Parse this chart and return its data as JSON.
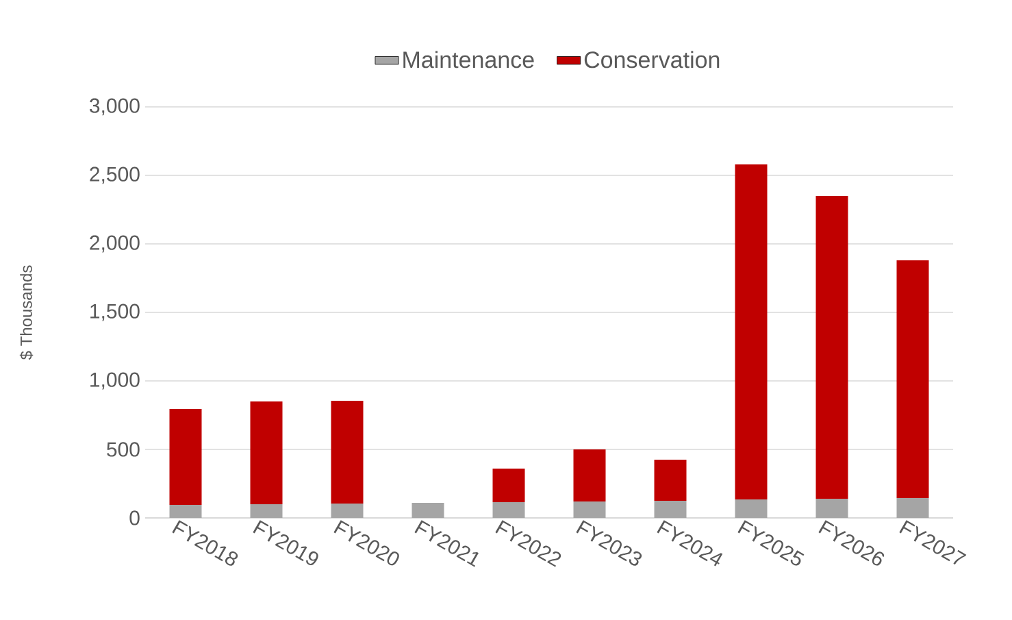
{
  "chart_data": {
    "type": "bar",
    "stacked": true,
    "ylabel": "$ Thousands",
    "categories": [
      "FY2018",
      "FY2019",
      "FY2020",
      "FY2021",
      "FY2022",
      "FY2023",
      "FY2024",
      "FY2025",
      "FY2026",
      "FY2027"
    ],
    "series": [
      {
        "name": "Maintenance",
        "color": "#a5a5a5",
        "values": [
          95,
          100,
          105,
          110,
          115,
          120,
          125,
          135,
          140,
          145
        ]
      },
      {
        "name": "Conservation",
        "color": "#c00000",
        "values": [
          700,
          750,
          750,
          0,
          245,
          380,
          300,
          2445,
          2210,
          1735
        ]
      }
    ],
    "ylim": [
      0,
      3000
    ],
    "yticks": [
      0,
      500,
      {
        "value": 1000,
        "label": "1,000"
      },
      {
        "value": 1500,
        "label": "1,500"
      },
      {
        "value": 2000,
        "label": "2,000"
      },
      {
        "value": 2500,
        "label": "2,500"
      },
      {
        "value": 3000,
        "label": "3,000"
      }
    ],
    "grid": "y",
    "legend": "top"
  }
}
